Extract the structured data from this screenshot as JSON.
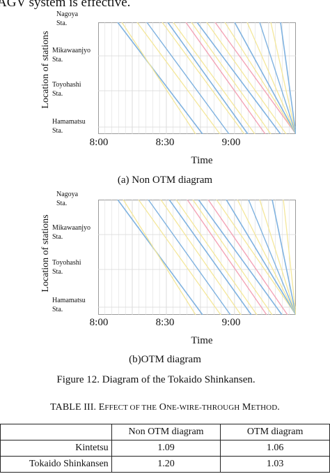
{
  "top_text": "AGV system is effective.",
  "charts": [
    {
      "ylabel": "Location of stations",
      "stations": [
        "Nagoya\nSta.",
        "Mikawaanjyo\nSta.",
        "Toyohashi\nSta.",
        "Hamamatsu\nSta."
      ],
      "xticks": [
        "8:00",
        "8:30",
        "9:00"
      ],
      "xlabel": "Time",
      "caption": "(a) Non OTM diagram"
    },
    {
      "ylabel": "Location of stations",
      "stations": [
        "Nagoya\nSta.",
        "Mikawaanjyo\nSta.",
        "Toyohashi\nSta.",
        "Hamamatsu\nSta."
      ],
      "xticks": [
        "8:00",
        "8:30",
        "9:00"
      ],
      "xlabel": "Time",
      "caption": "(b)OTM diagram"
    }
  ],
  "figure_caption": "Figure 12.     Diagram of the Tokaido Shinkansen.",
  "table": {
    "title_prefix": "TABLE III.  E",
    "title_sc1": "FFECT OF THE",
    "title_mid1": " O",
    "title_sc2": "NE-WIRE-THROUGH",
    "title_mid2": " M",
    "title_sc3": "ETHOD",
    "title_end": ".",
    "header": [
      "",
      "Non OTM diagram",
      "OTM diagram"
    ],
    "rows": [
      [
        "Kintetsu",
        "1.09",
        "1.06"
      ],
      [
        "Tokaido Shinkansen",
        "1.20",
        "1.03"
      ]
    ]
  },
  "colors": {
    "blue": "#7fb2e0",
    "yellow": "#f4e79a",
    "pink": "#f3a3b6",
    "grid": "#d8d8d8",
    "frame": "#9a9a9a"
  }
}
